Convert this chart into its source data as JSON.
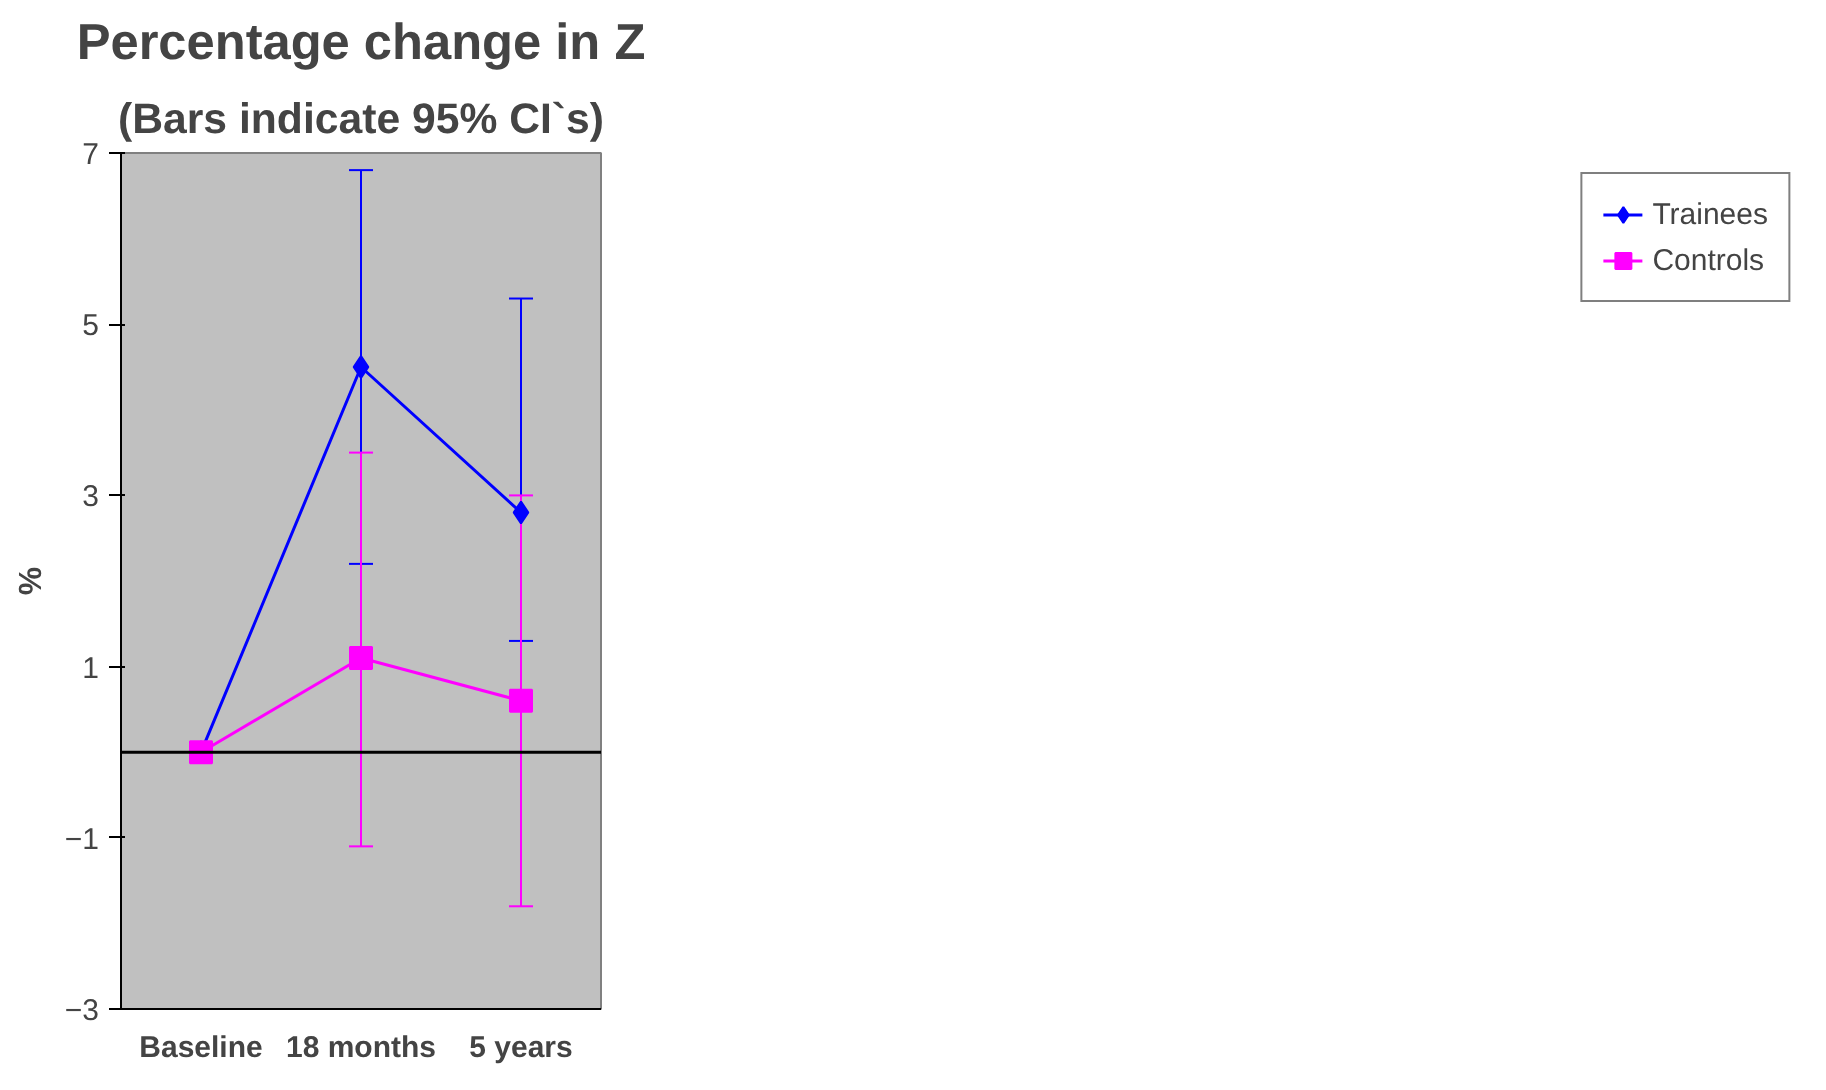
{
  "chart_data": {
    "type": "line",
    "title": "Percentage change in Z",
    "subtitle": "(Bars indicate 95% CI`s)",
    "ylabel": "%",
    "categories": [
      "Baseline",
      "18 months",
      "5 years"
    ],
    "series": [
      {
        "name": "Trainees",
        "color": "#0000ff",
        "marker": "diamond",
        "values": [
          0,
          4.5,
          2.8
        ],
        "errors": [
          null,
          [
            2.2,
            6.8
          ],
          [
            1.3,
            5.3
          ]
        ]
      },
      {
        "name": "Controls",
        "color": "#ff00ff",
        "marker": "square",
        "values": [
          0,
          1.1,
          0.6
        ],
        "errors": [
          null,
          [
            -1.1,
            3.5
          ],
          [
            -1.8,
            3.0
          ]
        ]
      }
    ],
    "ylim": [
      -3,
      7
    ],
    "yticks": [
      -3,
      -1,
      1,
      3,
      5,
      7
    ],
    "grid": false,
    "legend": "right",
    "line_style": "solid",
    "ref_lines": [
      {
        "axis": "y",
        "value": 0,
        "label": null,
        "color": "#000000"
      }
    ]
  }
}
